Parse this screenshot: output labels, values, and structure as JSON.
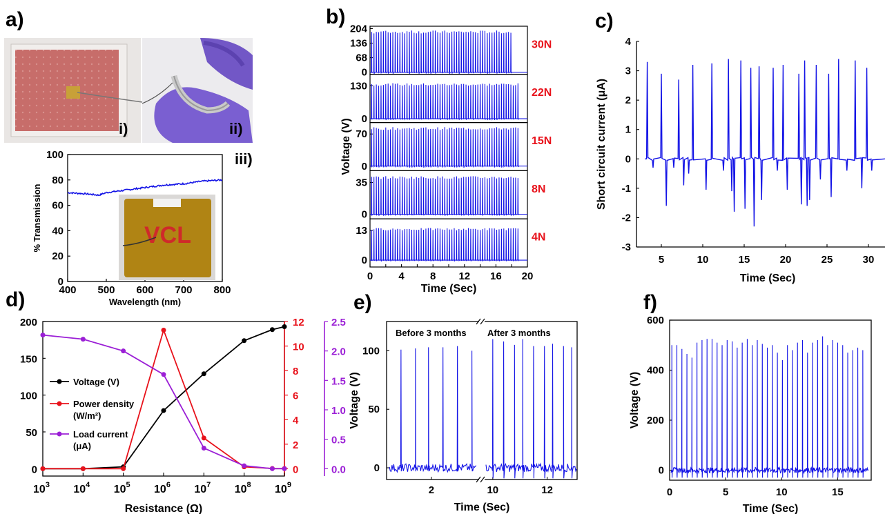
{
  "colors": {
    "blue": "#1414e6",
    "red": "#e8121b",
    "black": "#000000",
    "purple": "#9b1fd6"
  },
  "panels": {
    "a": {
      "letter": "a)",
      "photo_labels": [
        "i)",
        "ii)",
        "iii)"
      ],
      "inset_text": "VCL"
    },
    "b": {
      "letter": "b)"
    },
    "c": {
      "letter": "c)"
    },
    "d": {
      "letter": "d)"
    },
    "e": {
      "letter": "e)"
    },
    "f": {
      "letter": "f)"
    }
  },
  "chart_data": [
    {
      "id": "a_iii",
      "type": "line",
      "xlabel": "Wavelength (nm)",
      "ylabel": "% Transmission",
      "xlim": [
        400,
        800
      ],
      "ylim": [
        0,
        100
      ],
      "xticks": [
        400,
        500,
        600,
        700,
        800
      ],
      "yticks": [
        0,
        20,
        40,
        60,
        80,
        100
      ],
      "x": [
        400,
        450,
        480,
        500,
        550,
        600,
        650,
        700,
        750,
        800
      ],
      "y": [
        70,
        69,
        68,
        70,
        72,
        74,
        76,
        77,
        79,
        80
      ]
    },
    {
      "id": "b",
      "type": "line",
      "xlabel": "Time (Sec)",
      "ylabel": "Voltage (V)",
      "xlim": [
        0,
        20
      ],
      "xticks": [
        0,
        2,
        4,
        6,
        8,
        10,
        12,
        14,
        16,
        18,
        20
      ],
      "subplots": [
        {
          "label": "30N",
          "yticks": [
            0,
            68,
            136,
            204
          ],
          "ylim": [
            -10,
            215
          ],
          "peak": 195,
          "t_end": 18
        },
        {
          "label": "22N",
          "yticks": [
            0,
            130
          ],
          "ylim": [
            -15,
            175
          ],
          "peak": 140,
          "t_end": 19
        },
        {
          "label": "15N",
          "yticks": [
            0,
            70
          ],
          "ylim": [
            -10,
            95
          ],
          "peak": 85,
          "t_end": 19
        },
        {
          "label": "8N",
          "yticks": [
            0,
            35
          ],
          "ylim": [
            -5,
            48
          ],
          "peak": 42,
          "t_end": 19
        },
        {
          "label": "4N",
          "yticks": [
            0,
            13
          ],
          "ylim": [
            -3,
            18
          ],
          "peak": 14,
          "t_end": 19
        }
      ]
    },
    {
      "id": "c",
      "type": "line",
      "xlabel": "Time (Sec)",
      "ylabel": "Short circuit current (μA)",
      "xlim": [
        2,
        32
      ],
      "ylim": [
        -3,
        4
      ],
      "xticks": [
        5,
        10,
        15,
        20,
        25,
        30
      ],
      "yticks": [
        -3,
        -2,
        -1,
        0,
        1,
        2,
        3,
        4
      ],
      "peaks": [
        [
          3.3,
          3.3
        ],
        [
          5.0,
          2.9
        ],
        [
          7.1,
          2.7
        ],
        [
          8.8,
          3.2
        ],
        [
          11.1,
          3.25
        ],
        [
          13.1,
          3.4
        ],
        [
          14.6,
          3.35
        ],
        [
          15.8,
          3.1
        ],
        [
          16.8,
          3.15
        ],
        [
          18.5,
          3.1
        ],
        [
          19.7,
          3.2
        ],
        [
          21.6,
          2.9
        ],
        [
          22.3,
          3.35
        ],
        [
          23.7,
          3.2
        ],
        [
          25.2,
          2.9
        ],
        [
          26.4,
          3.4
        ],
        [
          28.4,
          3.35
        ],
        [
          29.8,
          3.1
        ]
      ],
      "troughs": [
        [
          4.0,
          -0.3
        ],
        [
          5.6,
          -1.6
        ],
        [
          6.5,
          -0.3
        ],
        [
          7.7,
          -0.9
        ],
        [
          8.3,
          -0.5
        ],
        [
          10.4,
          -1.05
        ],
        [
          12.5,
          -0.4
        ],
        [
          13.5,
          -1.1
        ],
        [
          13.8,
          -1.8
        ],
        [
          15.1,
          -1.7
        ],
        [
          16.2,
          -2.3
        ],
        [
          17.1,
          -1.4
        ],
        [
          19.0,
          -0.4
        ],
        [
          20.2,
          -1.05
        ],
        [
          21.9,
          -1.55
        ],
        [
          22.6,
          -1.6
        ],
        [
          22.9,
          -1.4
        ],
        [
          24.2,
          -0.7
        ],
        [
          25.5,
          -1.3
        ],
        [
          27.4,
          -0.4
        ],
        [
          29.2,
          -1.0
        ],
        [
          30.4,
          -0.4
        ]
      ]
    },
    {
      "id": "d",
      "type": "line",
      "xlabel": "Resistance (Ω)",
      "x": [
        1000,
        10000,
        100000,
        1000000,
        10000000,
        100000000,
        500000000,
        1000000000
      ],
      "xticks": [
        1000,
        10000,
        100000,
        1000000,
        10000000,
        100000000,
        1000000000
      ],
      "xtick_labels": [
        [
          "10",
          "3"
        ],
        [
          "10",
          "4"
        ],
        [
          "10",
          "5"
        ],
        [
          "10",
          "6"
        ],
        [
          "10",
          "7"
        ],
        [
          "10",
          "8"
        ],
        [
          "10",
          "9"
        ]
      ],
      "y_left": {
        "lim": [
          -10,
          200
        ],
        "ticks": [
          0,
          50,
          100,
          150,
          200
        ]
      },
      "y_right1": {
        "lim": [
          -0.6,
          12
        ],
        "ticks": [
          0,
          2,
          4,
          6,
          8,
          10,
          12
        ]
      },
      "y_right2": {
        "lim": [
          -0.125,
          2.5
        ],
        "ticks": [
          "0.0",
          "0.5",
          "1.0",
          "1.5",
          "2.0",
          "2.5"
        ]
      },
      "series": [
        {
          "name": "Voltage (V)",
          "axis": "left",
          "values": [
            0,
            0,
            2.5,
            79,
            129,
            174,
            189,
            193
          ]
        },
        {
          "name": "Power density",
          "name_line2": "(W/m²)",
          "axis": "right1",
          "values": [
            0,
            0,
            0,
            11.3,
            2.5,
            0.15,
            0.02,
            0.01
          ]
        },
        {
          "name": "Load current",
          "name_line2": "(μA)",
          "axis": "right2",
          "values": [
            2.27,
            2.2,
            2.0,
            1.6,
            0.35,
            0.05,
            0.0,
            0.0
          ]
        }
      ]
    },
    {
      "id": "e",
      "type": "line",
      "xlabel": "Time (Sec)",
      "ylabel": "Voltage (V)",
      "ylim": [
        -10,
        125
      ],
      "yticks": [
        0,
        50,
        100
      ],
      "xticks_left": [
        2
      ],
      "xticks_right": [
        10,
        12
      ],
      "annotations": [
        "Before 3 months",
        "After 3 months"
      ],
      "peaks_before": [
        [
          0.95,
          101
        ],
        [
          1.45,
          102
        ],
        [
          1.9,
          103
        ],
        [
          2.4,
          103
        ],
        [
          2.9,
          104
        ],
        [
          3.4,
          100
        ]
      ],
      "peaks_after": [
        [
          10.0,
          110
        ],
        [
          10.4,
          108
        ],
        [
          10.8,
          105
        ],
        [
          11.1,
          110
        ],
        [
          11.5,
          104
        ],
        [
          11.9,
          104
        ],
        [
          12.2,
          106
        ],
        [
          12.6,
          104
        ],
        [
          12.9,
          103
        ]
      ]
    },
    {
      "id": "f",
      "type": "line",
      "xlabel": "Time (Sec)",
      "ylabel": "Voltage (V)",
      "xlim": [
        0,
        18
      ],
      "ylim": [
        -40,
        600
      ],
      "xticks": [
        0,
        5,
        10,
        15
      ],
      "yticks": [
        0,
        200,
        400,
        600
      ],
      "peaks": [
        500,
        500,
        485,
        465,
        450,
        510,
        520,
        525,
        525,
        510,
        500,
        520,
        515,
        490,
        510,
        525,
        500,
        520,
        505,
        490,
        500,
        470,
        440,
        500,
        480,
        510,
        520,
        470,
        510,
        520,
        535,
        500,
        520,
        510,
        500,
        470,
        480,
        490,
        480
      ]
    }
  ]
}
